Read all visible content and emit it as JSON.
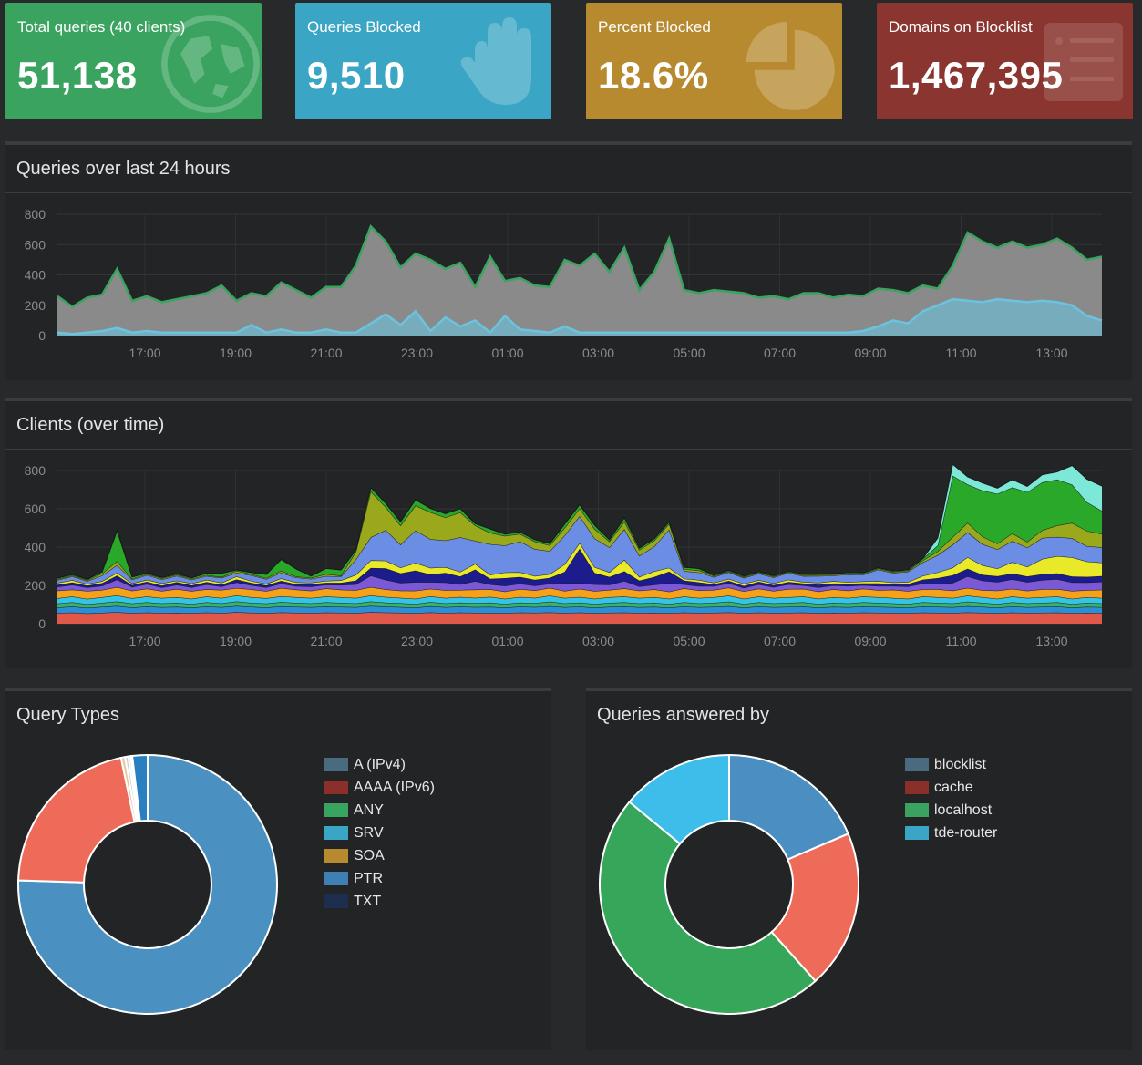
{
  "tiles": [
    {
      "label": "Total queries (40 clients)",
      "value": "51,138",
      "color": "#3aa35f",
      "icon": "globe-icon"
    },
    {
      "label": "Queries Blocked",
      "value": "9,510",
      "color": "#3aa5c4",
      "icon": "hand-icon"
    },
    {
      "label": "Percent Blocked",
      "value": "18.6%",
      "color": "#b88a2f",
      "icon": "pie-chart-icon"
    },
    {
      "label": "Domains on Blocklist",
      "value": "1,467,395",
      "color": "#8a3530",
      "icon": "list-icon"
    }
  ],
  "queries_panel": {
    "title": "Queries over last 24 hours"
  },
  "clients_panel": {
    "title": "Clients (over time)"
  },
  "types_panel": {
    "title": "Query Types"
  },
  "answered_panel": {
    "title": "Queries answered by"
  },
  "chart_data": [
    {
      "type": "area",
      "title": "Queries over last 24 hours",
      "x_ticks": [
        "17:00",
        "19:00",
        "21:00",
        "23:00",
        "01:00",
        "03:00",
        "05:00",
        "07:00",
        "09:00",
        "11:00",
        "13:00"
      ],
      "y_ticks": [
        "0",
        "200",
        "400",
        "600",
        "800"
      ],
      "ylim": [
        0,
        800
      ],
      "series": [
        {
          "color": "#8a8a8a",
          "values": [
            260,
            190,
            250,
            270,
            440,
            230,
            260,
            220,
            240,
            260,
            280,
            330,
            230,
            280,
            260,
            350,
            300,
            250,
            320,
            320,
            460,
            720,
            620,
            450,
            540,
            500,
            440,
            480,
            320,
            520,
            360,
            380,
            330,
            320,
            500,
            460,
            540,
            420,
            580,
            300,
            420,
            640,
            300,
            280,
            300,
            290,
            280,
            250,
            260,
            240,
            280,
            280,
            250,
            270,
            260,
            310,
            300,
            280,
            330,
            310,
            460,
            680,
            620,
            580,
            620,
            580,
            600,
            640,
            580,
            500,
            520
          ]
        },
        {
          "color": "#6ac3df",
          "values": [
            20,
            10,
            20,
            30,
            50,
            20,
            30,
            20,
            20,
            20,
            20,
            20,
            20,
            70,
            20,
            40,
            20,
            20,
            40,
            20,
            20,
            80,
            140,
            70,
            160,
            30,
            120,
            60,
            100,
            20,
            130,
            40,
            30,
            20,
            60,
            20,
            20,
            20,
            20,
            20,
            20,
            20,
            20,
            20,
            20,
            20,
            20,
            20,
            20,
            20,
            20,
            20,
            20,
            20,
            30,
            60,
            100,
            80,
            160,
            200,
            240,
            230,
            220,
            240,
            230,
            220,
            230,
            220,
            200,
            130,
            100
          ]
        }
      ]
    },
    {
      "type": "area",
      "title": "Clients (over time)",
      "x_ticks": [
        "17:00",
        "19:00",
        "21:00",
        "23:00",
        "01:00",
        "03:00",
        "05:00",
        "07:00",
        "09:00",
        "11:00",
        "13:00"
      ],
      "y_ticks": [
        "0",
        "200",
        "400",
        "600",
        "800"
      ],
      "ylim": [
        0,
        800
      ],
      "series": [
        {
          "color": "#e0584a",
          "values": [
            55,
            58,
            54,
            57,
            60,
            55,
            58,
            56,
            57,
            55,
            58,
            56,
            60,
            57,
            55,
            59,
            57,
            56,
            58,
            57,
            56,
            60,
            58,
            57,
            55,
            59,
            56,
            58,
            57,
            56,
            55,
            58,
            57,
            59,
            56,
            58,
            55,
            57,
            58,
            56,
            57,
            55,
            58,
            56,
            57,
            59,
            55,
            58,
            56,
            57,
            58,
            55,
            57,
            56,
            58,
            57,
            56,
            55,
            58,
            57,
            56,
            59,
            57,
            55,
            58,
            56,
            57,
            58,
            55,
            57,
            56
          ]
        },
        {
          "color": "#2a8fd6",
          "values": [
            30,
            32,
            29,
            31,
            33,
            30,
            32,
            30,
            31,
            29,
            32,
            30,
            33,
            31,
            30,
            32,
            31,
            30,
            32,
            31,
            30,
            33,
            31,
            30,
            29,
            32,
            30,
            31,
            30,
            32,
            29,
            31,
            30,
            33,
            30,
            31,
            29,
            31,
            32,
            30,
            31,
            29,
            32,
            30,
            31,
            33,
            29,
            32,
            30,
            31,
            32,
            29,
            31,
            30,
            32,
            31,
            30,
            29,
            32,
            31,
            30,
            33,
            31,
            29,
            32,
            30,
            31,
            32,
            29,
            31,
            30
          ]
        },
        {
          "color": "#3ab36a",
          "values": [
            20,
            22,
            19,
            21,
            23,
            20,
            22,
            20,
            21,
            19,
            22,
            20,
            23,
            21,
            20,
            22,
            21,
            20,
            22,
            21,
            20,
            23,
            21,
            20,
            19,
            22,
            20,
            21,
            20,
            22,
            19,
            21,
            20,
            23,
            20,
            21,
            19,
            21,
            22,
            20,
            21,
            19,
            22,
            20,
            21,
            23,
            19,
            22,
            20,
            21,
            22,
            19,
            21,
            20,
            22,
            21,
            20,
            19,
            22,
            21,
            20,
            23,
            21,
            19,
            22,
            20,
            21,
            22,
            19,
            21,
            20
          ]
        },
        {
          "color": "#35c3e6",
          "values": [
            28,
            30,
            27,
            29,
            31,
            28,
            30,
            28,
            29,
            27,
            30,
            28,
            31,
            29,
            28,
            30,
            29,
            28,
            30,
            29,
            28,
            31,
            29,
            28,
            27,
            30,
            28,
            29,
            28,
            30,
            27,
            29,
            28,
            31,
            28,
            29,
            27,
            29,
            30,
            28,
            29,
            27,
            30,
            28,
            29,
            31,
            27,
            30,
            28,
            29,
            30,
            27,
            29,
            28,
            30,
            29,
            28,
            27,
            30,
            29,
            28,
            31,
            29,
            27,
            30,
            28,
            29,
            30,
            27,
            29,
            28
          ]
        },
        {
          "color": "#f5a21a",
          "values": [
            40,
            36,
            42,
            38,
            44,
            39,
            41,
            37,
            43,
            40,
            38,
            42,
            39,
            41,
            37,
            43,
            40,
            38,
            42,
            39,
            41,
            44,
            40,
            38,
            42,
            39,
            41,
            37,
            43,
            40,
            38,
            42,
            39,
            41,
            37,
            43,
            40,
            38,
            42,
            39,
            41,
            37,
            43,
            40,
            38,
            42,
            39,
            41,
            37,
            43,
            40,
            38,
            42,
            39,
            41,
            37,
            43,
            40,
            38,
            42,
            39,
            41,
            37,
            43,
            40,
            38,
            42,
            39,
            41,
            37,
            43
          ]
        },
        {
          "color": "#7b59d6",
          "values": [
            20,
            25,
            18,
            22,
            40,
            20,
            24,
            18,
            22,
            20,
            25,
            18,
            30,
            22,
            20,
            24,
            18,
            22,
            20,
            25,
            30,
            60,
            50,
            40,
            45,
            35,
            40,
            30,
            45,
            25,
            30,
            28,
            25,
            22,
            40,
            30,
            35,
            28,
            40,
            22,
            25,
            45,
            20,
            22,
            20,
            24,
            18,
            22,
            20,
            25,
            18,
            22,
            20,
            24,
            18,
            22,
            20,
            25,
            30,
            28,
            40,
            60,
            50,
            45,
            50,
            45,
            48,
            52,
            45,
            40,
            42
          ]
        },
        {
          "color": "#1c1c8c",
          "values": [
            10,
            12,
            10,
            14,
            20,
            10,
            12,
            10,
            14,
            10,
            12,
            10,
            15,
            12,
            10,
            14,
            10,
            12,
            10,
            12,
            20,
            40,
            60,
            50,
            60,
            40,
            50,
            40,
            60,
            30,
            40,
            35,
            30,
            30,
            60,
            180,
            60,
            40,
            50,
            30,
            40,
            60,
            20,
            20,
            10,
            12,
            10,
            14,
            10,
            12,
            10,
            14,
            10,
            12,
            10,
            14,
            10,
            12,
            20,
            30,
            40,
            40,
            30,
            30,
            30,
            30,
            30,
            30,
            30,
            30,
            30
          ]
        },
        {
          "color": "#e9e92a",
          "values": [
            10,
            12,
            8,
            10,
            15,
            8,
            10,
            12,
            8,
            10,
            12,
            10,
            15,
            10,
            8,
            12,
            10,
            8,
            10,
            12,
            30,
            40,
            40,
            30,
            40,
            35,
            30,
            25,
            30,
            20,
            30,
            25,
            20,
            20,
            40,
            30,
            30,
            25,
            60,
            20,
            30,
            20,
            10,
            12,
            8,
            10,
            12,
            8,
            10,
            12,
            8,
            10,
            12,
            8,
            10,
            12,
            8,
            10,
            20,
            30,
            40,
            60,
            50,
            40,
            60,
            50,
            80,
            90,
            100,
            80,
            70
          ]
        },
        {
          "color": "#6b8de3",
          "values": [
            15,
            20,
            15,
            30,
            40,
            20,
            25,
            20,
            25,
            20,
            20,
            25,
            20,
            30,
            25,
            30,
            25,
            20,
            25,
            20,
            80,
            120,
            160,
            120,
            170,
            150,
            140,
            180,
            120,
            160,
            140,
            160,
            140,
            120,
            150,
            140,
            150,
            130,
            160,
            110,
            130,
            200,
            40,
            40,
            30,
            35,
            30,
            35,
            30,
            35,
            30,
            35,
            30,
            40,
            35,
            60,
            50,
            55,
            70,
            90,
            120,
            130,
            110,
            100,
            110,
            100,
            110,
            100,
            100,
            80,
            80
          ]
        },
        {
          "color": "#9aa81c",
          "values": [
            5,
            5,
            5,
            10,
            20,
            5,
            5,
            5,
            5,
            5,
            5,
            5,
            10,
            5,
            5,
            10,
            5,
            5,
            10,
            5,
            40,
            240,
            120,
            100,
            130,
            140,
            120,
            130,
            80,
            60,
            50,
            40,
            40,
            30,
            40,
            40,
            50,
            30,
            40,
            30,
            30,
            30,
            10,
            10,
            5,
            5,
            5,
            5,
            5,
            5,
            5,
            5,
            5,
            5,
            5,
            5,
            5,
            5,
            10,
            20,
            40,
            50,
            40,
            30,
            40,
            30,
            40,
            60,
            80,
            80,
            70
          ]
        },
        {
          "color": "#2aa82a",
          "values": [
            5,
            5,
            5,
            10,
            160,
            10,
            5,
            5,
            5,
            5,
            10,
            20,
            5,
            10,
            20,
            60,
            40,
            10,
            30,
            30,
            10,
            20,
            20,
            20,
            30,
            20,
            20,
            20,
            10,
            20,
            10,
            10,
            10,
            10,
            20,
            20,
            20,
            10,
            20,
            10,
            10,
            10,
            10,
            10,
            5,
            5,
            5,
            5,
            5,
            5,
            5,
            5,
            5,
            5,
            5,
            5,
            5,
            5,
            10,
            30,
            320,
            200,
            240,
            260,
            240,
            260,
            250,
            240,
            200,
            150,
            120
          ]
        },
        {
          "color": "#7de8d8",
          "values": [
            0,
            0,
            0,
            0,
            0,
            0,
            0,
            0,
            0,
            0,
            0,
            0,
            0,
            0,
            0,
            0,
            0,
            0,
            0,
            0,
            0,
            0,
            0,
            0,
            0,
            0,
            0,
            0,
            0,
            0,
            0,
            0,
            0,
            0,
            0,
            0,
            0,
            0,
            0,
            0,
            0,
            0,
            0,
            0,
            0,
            0,
            0,
            0,
            0,
            0,
            0,
            0,
            0,
            0,
            0,
            0,
            0,
            0,
            0,
            40,
            60,
            40,
            40,
            30,
            40,
            30,
            40,
            40,
            100,
            120,
            130
          ]
        }
      ]
    },
    {
      "type": "pie",
      "title": "Query Types",
      "labels": [
        "A (IPv4)",
        "AAAA (IPv6)",
        "ANY",
        "SRV",
        "SOA",
        "PTR",
        "TXT"
      ],
      "colors": [
        "#4a6a80",
        "#8a2f2a",
        "#3aa35f",
        "#3aa5c4",
        "#b88a2f",
        "#3f7fb5",
        "#1d2f50"
      ],
      "slice_colors": [
        "#4a91c2",
        "#ee6b5a",
        "#e8c8a0",
        "#d0d0d0",
        "#e0e0e0",
        "#ffffff",
        "#2a7fc0"
      ],
      "values": [
        75.5,
        21.2,
        0.5,
        0.4,
        0.3,
        0.2,
        1.9
      ]
    },
    {
      "type": "pie",
      "title": "Queries answered by",
      "labels": [
        "blocklist",
        "cache",
        "localhost",
        "tde-router"
      ],
      "colors": [
        "#4a6a80",
        "#8a2f2a",
        "#3aa35f",
        "#3aa5c4"
      ],
      "slice_colors": [
        "#4a8ec2",
        "#ee6b5a",
        "#36a75a",
        "#3dbdea"
      ],
      "values": [
        18.6,
        19.8,
        47.6,
        14.0
      ]
    }
  ]
}
